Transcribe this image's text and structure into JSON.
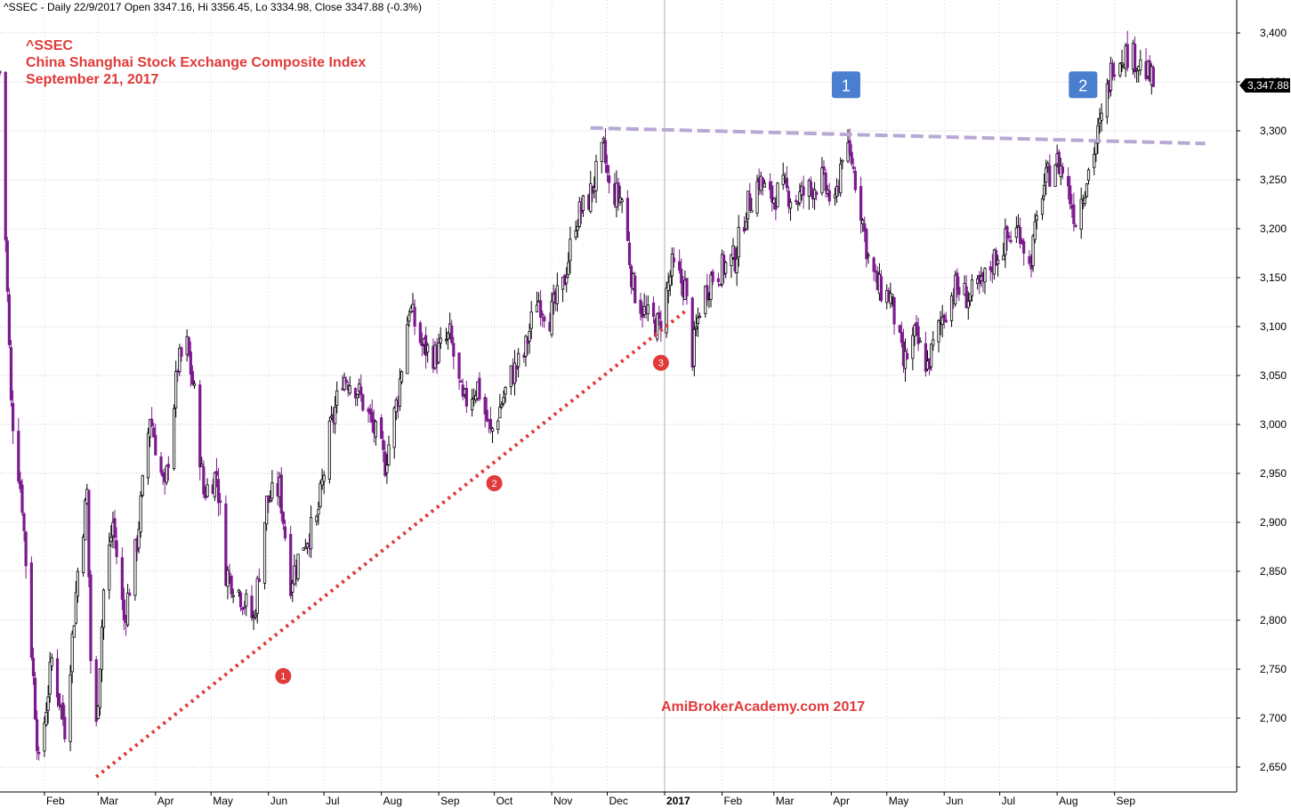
{
  "header": {
    "info": "^SSEC - Daily 22/9/2017 Open 3347.16, Hi 3356.45, Lo 3334.98, Close 3347.88 (-0.3%)"
  },
  "chart_data": {
    "type": "candlestick",
    "title_lines": [
      "^SSEC",
      "China Shanghai Stock Exchange Composite Index",
      "September 21, 2017"
    ],
    "watermark": "AmiBrokerAcademy.com   2017",
    "last_price_label": "3,347.88",
    "ylim": [
      2630,
      3420
    ],
    "grid": true,
    "y_ticks": [
      {
        "value": 3400,
        "label": "3,400"
      },
      {
        "value": 3350,
        "label": "3,350"
      },
      {
        "value": 3300,
        "label": "3,300"
      },
      {
        "value": 3250,
        "label": "3,250"
      },
      {
        "value": 3200,
        "label": "3,200"
      },
      {
        "value": 3150,
        "label": "3,150"
      },
      {
        "value": 3100,
        "label": "3,100"
      },
      {
        "value": 3050,
        "label": "3,050"
      },
      {
        "value": 3000,
        "label": "3,000"
      },
      {
        "value": 2950,
        "label": "2,950"
      },
      {
        "value": 2900,
        "label": "2,900"
      },
      {
        "value": 2850,
        "label": "2,850"
      },
      {
        "value": 2800,
        "label": "2,800"
      },
      {
        "value": 2750,
        "label": "2,750"
      },
      {
        "value": 2700,
        "label": "2,700"
      },
      {
        "value": 2650,
        "label": "2,650"
      }
    ],
    "x_ticks": [
      {
        "label": "Feb",
        "x": "2016-02-01"
      },
      {
        "label": "Mar",
        "x": "2016-03-01"
      },
      {
        "label": "Apr",
        "x": "2016-04-01"
      },
      {
        "label": "May",
        "x": "2016-05-01"
      },
      {
        "label": "Jun",
        "x": "2016-06-01"
      },
      {
        "label": "Jul",
        "x": "2016-07-01"
      },
      {
        "label": "Aug",
        "x": "2016-08-01"
      },
      {
        "label": "Sep",
        "x": "2016-09-01"
      },
      {
        "label": "Oct",
        "x": "2016-10-01"
      },
      {
        "label": "Nov",
        "x": "2016-11-01"
      },
      {
        "label": "Dec",
        "x": "2016-12-01"
      },
      {
        "label": "2017",
        "x": "2017-01-01",
        "bold": true
      },
      {
        "label": "Feb",
        "x": "2017-02-01"
      },
      {
        "label": "Mar",
        "x": "2017-03-01"
      },
      {
        "label": "Apr",
        "x": "2017-04-01"
      },
      {
        "label": "May",
        "x": "2017-05-01"
      },
      {
        "label": "Jun",
        "x": "2017-06-01"
      },
      {
        "label": "Jul",
        "x": "2017-07-01"
      },
      {
        "label": "Aug",
        "x": "2017-08-01"
      },
      {
        "label": "Sep",
        "x": "2017-09-01"
      }
    ],
    "xlim": [
      "2016-01-08",
      "2017-11-06"
    ],
    "series": [
      {
        "x": "2016-01-08",
        "close": 3360
      },
      {
        "x": "2016-01-14",
        "close": 3020
      },
      {
        "x": "2016-01-20",
        "close": 2920
      },
      {
        "x": "2016-01-26",
        "close": 2740
      },
      {
        "x": "2016-01-29",
        "close": 2650
      },
      {
        "x": "2016-02-05",
        "close": 2760
      },
      {
        "x": "2016-02-12",
        "close": 2690
      },
      {
        "x": "2016-02-19",
        "close": 2850
      },
      {
        "x": "2016-02-24",
        "close": 2930
      },
      {
        "x": "2016-02-26",
        "close": 2760
      },
      {
        "x": "2016-02-29",
        "close": 2690
      },
      {
        "x": "2016-03-04",
        "close": 2830
      },
      {
        "x": "2016-03-09",
        "close": 2900
      },
      {
        "x": "2016-03-15",
        "close": 2800
      },
      {
        "x": "2016-03-22",
        "close": 2880
      },
      {
        "x": "2016-03-29",
        "close": 3010
      },
      {
        "x": "2016-04-06",
        "close": 2930
      },
      {
        "x": "2016-04-13",
        "close": 3060
      },
      {
        "x": "2016-04-18",
        "close": 3080
      },
      {
        "x": "2016-04-22",
        "close": 3030
      },
      {
        "x": "2016-04-27",
        "close": 2930
      },
      {
        "x": "2016-05-04",
        "close": 2950
      },
      {
        "x": "2016-05-09",
        "close": 2850
      },
      {
        "x": "2016-05-16",
        "close": 2830
      },
      {
        "x": "2016-05-24",
        "close": 2800
      },
      {
        "x": "2016-05-31",
        "close": 2920
      },
      {
        "x": "2016-06-07",
        "close": 2935
      },
      {
        "x": "2016-06-13",
        "close": 2840
      },
      {
        "x": "2016-06-20",
        "close": 2880
      },
      {
        "x": "2016-06-27",
        "close": 2900
      },
      {
        "x": "2016-07-04",
        "close": 2990
      },
      {
        "x": "2016-07-11",
        "close": 3050
      },
      {
        "x": "2016-07-18",
        "close": 3040
      },
      {
        "x": "2016-07-27",
        "close": 3000
      },
      {
        "x": "2016-08-03",
        "close": 2960
      },
      {
        "x": "2016-08-10",
        "close": 3030
      },
      {
        "x": "2016-08-16",
        "close": 3120
      },
      {
        "x": "2016-08-23",
        "close": 3080
      },
      {
        "x": "2016-08-30",
        "close": 3070
      },
      {
        "x": "2016-09-07",
        "close": 3090
      },
      {
        "x": "2016-09-14",
        "close": 3020
      },
      {
        "x": "2016-09-22",
        "close": 3040
      },
      {
        "x": "2016-09-29",
        "close": 2990
      },
      {
        "x": "2016-10-10",
        "close": 3050
      },
      {
        "x": "2016-10-17",
        "close": 3070
      },
      {
        "x": "2016-10-24",
        "close": 3130
      },
      {
        "x": "2016-10-31",
        "close": 3110
      },
      {
        "x": "2016-11-07",
        "close": 3140
      },
      {
        "x": "2016-11-14",
        "close": 3210
      },
      {
        "x": "2016-11-21",
        "close": 3230
      },
      {
        "x": "2016-11-29",
        "close": 3280
      },
      {
        "x": "2016-12-02",
        "close": 3240
      },
      {
        "x": "2016-12-09",
        "close": 3230
      },
      {
        "x": "2016-12-15",
        "close": 3140
      },
      {
        "x": "2016-12-22",
        "close": 3110
      },
      {
        "x": "2016-12-29",
        "close": 3100
      },
      {
        "x": "2017-01-05",
        "close": 3160
      },
      {
        "x": "2017-01-12",
        "close": 3140
      },
      {
        "x": "2017-01-16",
        "close": 3070
      },
      {
        "x": "2017-01-20",
        "close": 3120
      },
      {
        "x": "2017-01-26",
        "close": 3150
      },
      {
        "x": "2017-02-08",
        "close": 3170
      },
      {
        "x": "2017-02-14",
        "close": 3220
      },
      {
        "x": "2017-02-21",
        "close": 3250
      },
      {
        "x": "2017-02-27",
        "close": 3230
      },
      {
        "x": "2017-03-06",
        "close": 3240
      },
      {
        "x": "2017-03-13",
        "close": 3230
      },
      {
        "x": "2017-03-20",
        "close": 3240
      },
      {
        "x": "2017-03-27",
        "close": 3250
      },
      {
        "x": "2017-04-03",
        "close": 3220
      },
      {
        "x": "2017-04-07",
        "close": 3280
      },
      {
        "x": "2017-04-12",
        "close": 3270
      },
      {
        "x": "2017-04-17",
        "close": 3220
      },
      {
        "x": "2017-04-21",
        "close": 3170
      },
      {
        "x": "2017-04-26",
        "close": 3140
      },
      {
        "x": "2017-05-03",
        "close": 3130
      },
      {
        "x": "2017-05-10",
        "close": 3060
      },
      {
        "x": "2017-05-16",
        "close": 3090
      },
      {
        "x": "2017-05-23",
        "close": 3060
      },
      {
        "x": "2017-05-31",
        "close": 3110
      },
      {
        "x": "2017-06-07",
        "close": 3140
      },
      {
        "x": "2017-06-14",
        "close": 3130
      },
      {
        "x": "2017-06-21",
        "close": 3140
      },
      {
        "x": "2017-06-28",
        "close": 3170
      },
      {
        "x": "2017-07-05",
        "close": 3190
      },
      {
        "x": "2017-07-12",
        "close": 3200
      },
      {
        "x": "2017-07-17",
        "close": 3160
      },
      {
        "x": "2017-07-24",
        "close": 3240
      },
      {
        "x": "2017-07-31",
        "close": 3270
      },
      {
        "x": "2017-08-04",
        "close": 3260
      },
      {
        "x": "2017-08-11",
        "close": 3210
      },
      {
        "x": "2017-08-18",
        "close": 3260
      },
      {
        "x": "2017-08-25",
        "close": 3310
      },
      {
        "x": "2017-08-31",
        "close": 3370
      },
      {
        "x": "2017-09-06",
        "close": 3380
      },
      {
        "x": "2017-09-12",
        "close": 3375
      },
      {
        "x": "2017-09-18",
        "close": 3360
      },
      {
        "x": "2017-09-22",
        "close": 3347.88
      }
    ],
    "annotations": {
      "trendline": {
        "from": {
          "x": "2016-02-29",
          "y": 2640
        },
        "to": {
          "x": "2017-01-13",
          "y": 3117
        },
        "color": "#e03a3a",
        "style": "dotted"
      },
      "resistance": {
        "from": {
          "x": "2016-11-22",
          "y": 3303
        },
        "to": {
          "x": "2017-10-20",
          "y": 3287
        },
        "color": "#b7a9d4",
        "style": "dashed"
      },
      "circles": [
        {
          "label": "1",
          "x": "2016-06-09",
          "y": 2743
        },
        {
          "label": "2",
          "x": "2016-10-01",
          "y": 2940
        },
        {
          "label": "3",
          "x": "2016-12-30",
          "y": 3063
        }
      ],
      "boxes": [
        {
          "label": "1",
          "x": "2017-04-09",
          "y": 3347
        },
        {
          "label": "2",
          "x": "2017-08-15",
          "y": 3347
        }
      ]
    },
    "colors": {
      "up": "#000000",
      "down": "#7b1a8c",
      "marker": "#e03a3a",
      "box": "#4a7fd0"
    }
  }
}
